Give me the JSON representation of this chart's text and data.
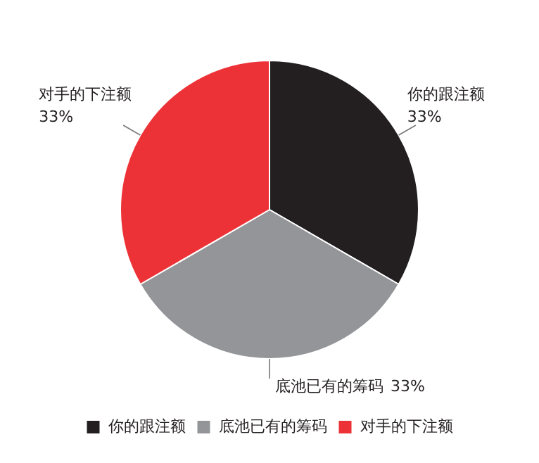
{
  "chart_data": {
    "type": "pie",
    "categories": [
      "你的跟注额",
      "底池已有的筹码",
      "对手的下注额"
    ],
    "values": [
      33,
      33,
      33
    ],
    "value_labels": [
      "33%",
      "33%",
      "33%"
    ],
    "colors": [
      "#231f20",
      "#939598",
      "#ed3237"
    ],
    "legend": "bottom"
  }
}
